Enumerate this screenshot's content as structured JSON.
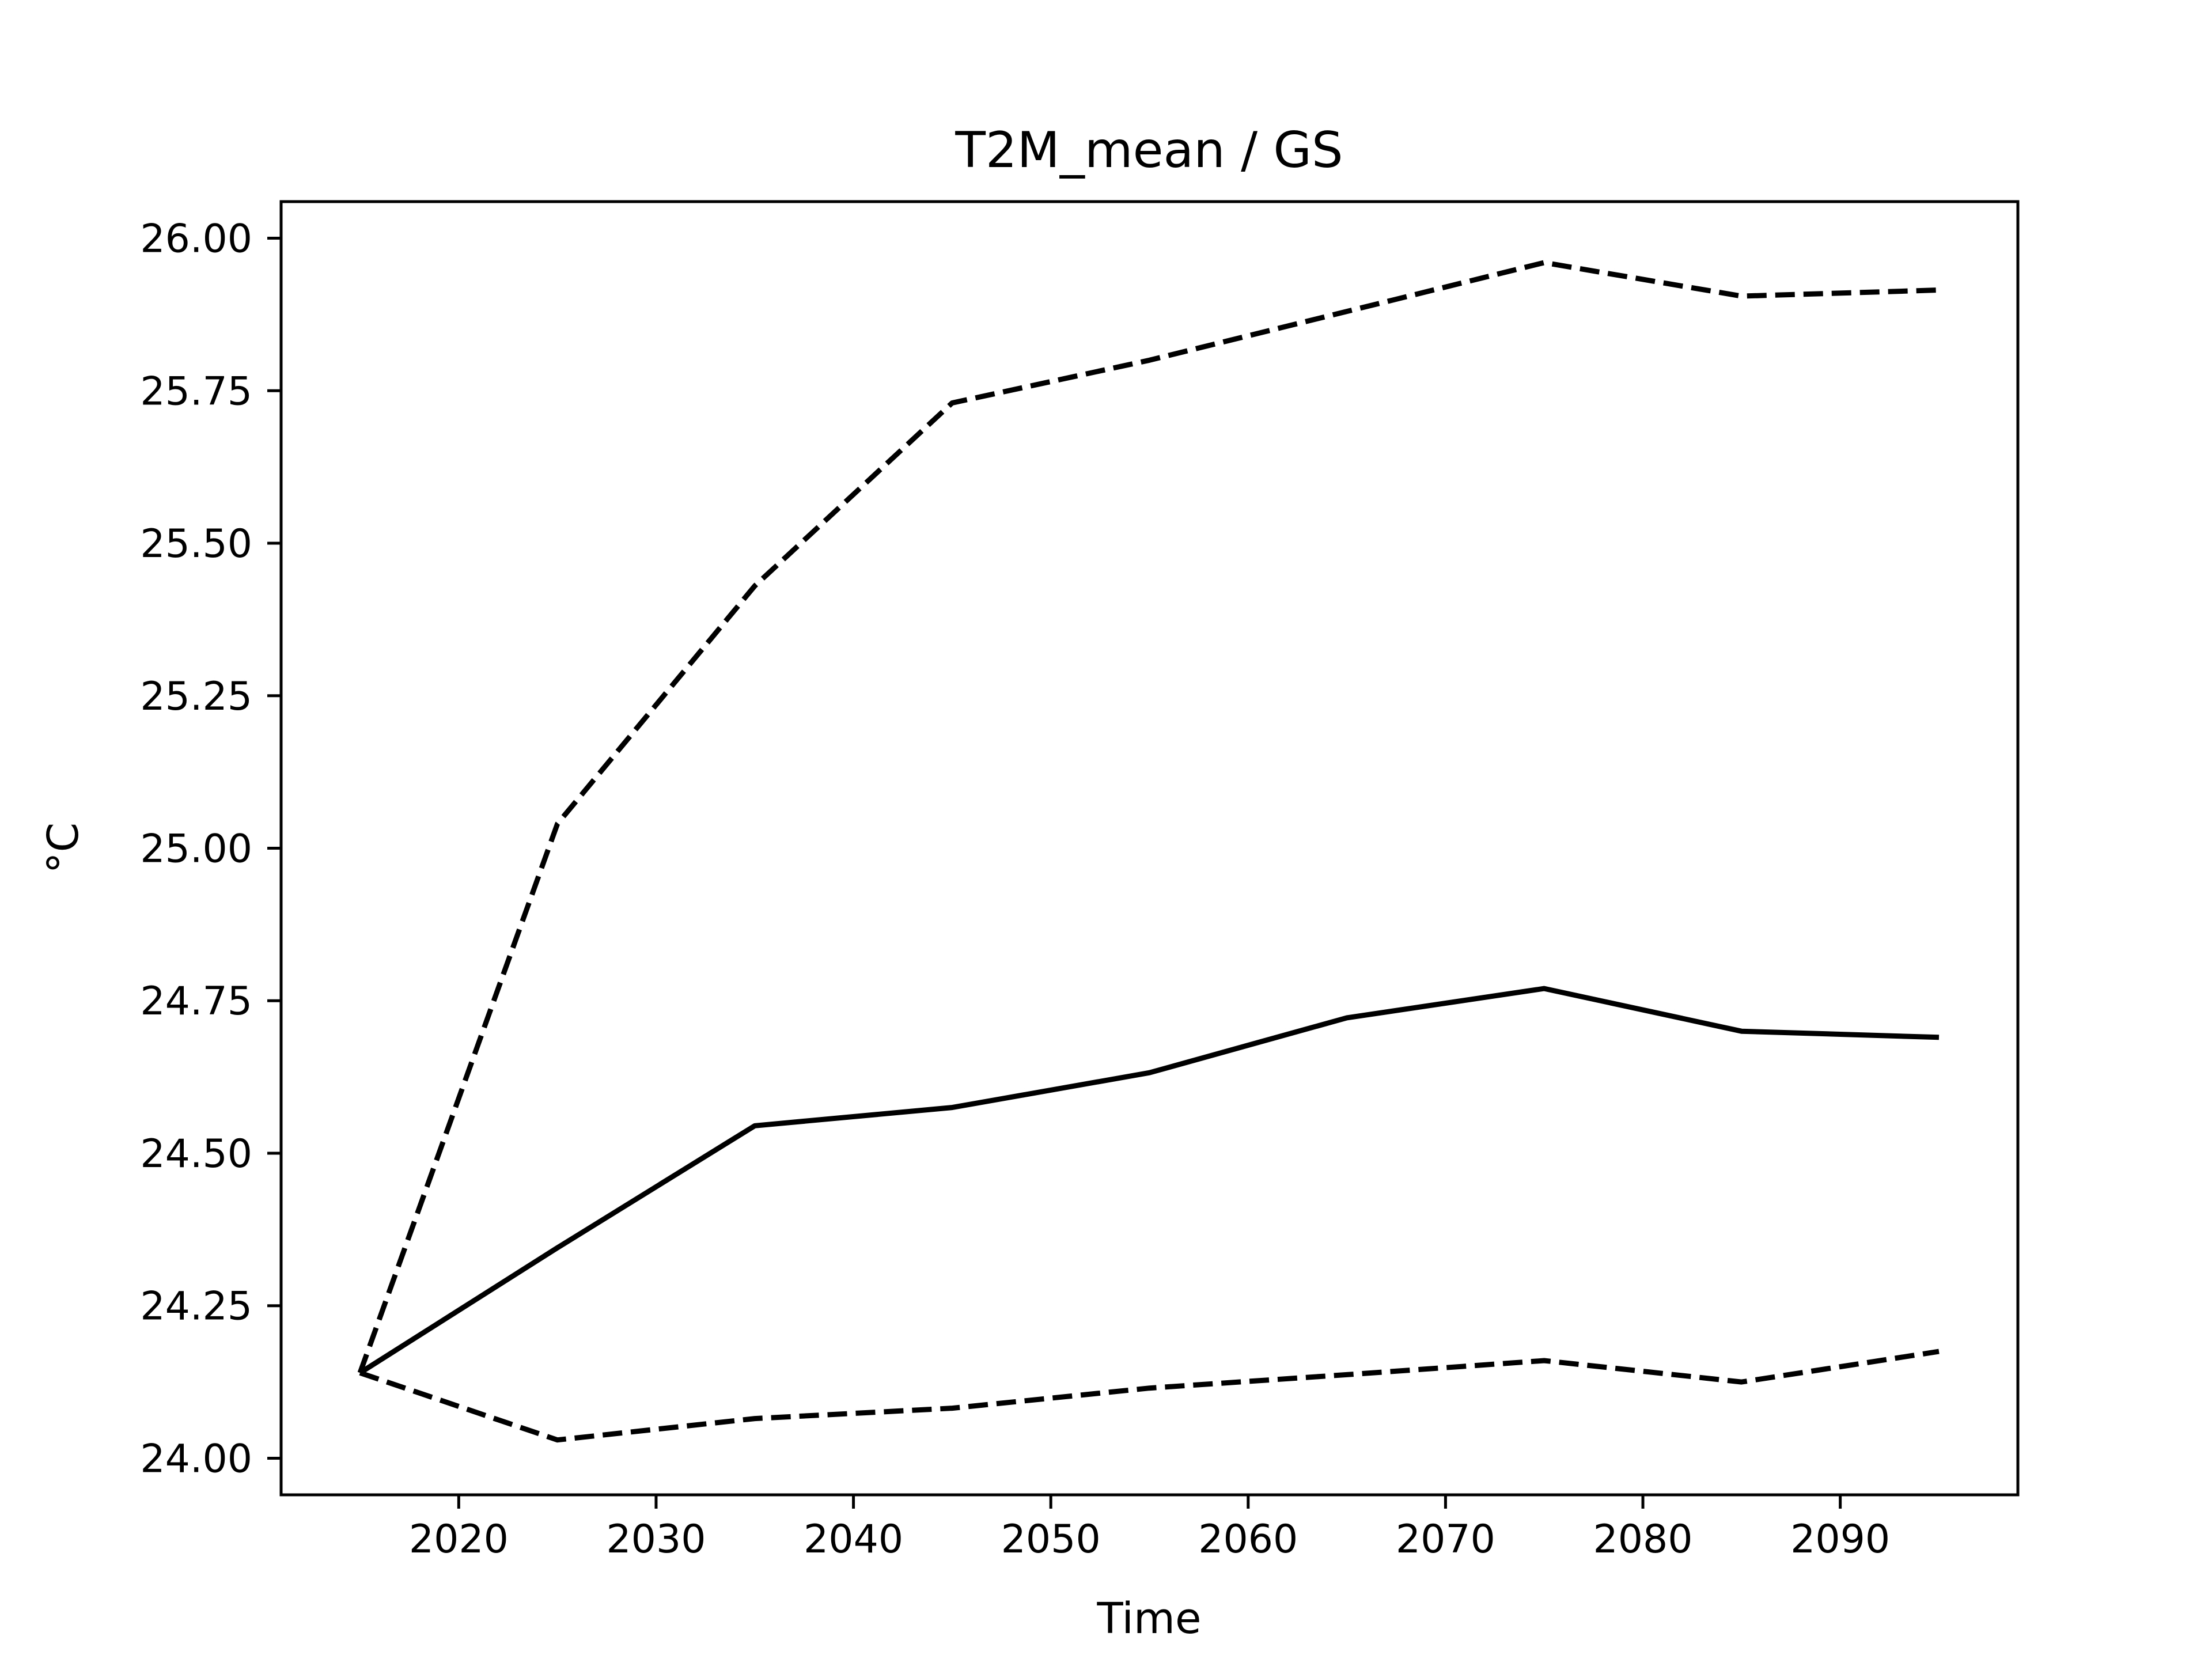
{
  "chart_data": {
    "type": "line",
    "title": "T2M_mean / GS",
    "xlabel": "Time",
    "ylabel": "°C",
    "xlim": [
      2011,
      2099
    ],
    "ylim": [
      23.94,
      26.06
    ],
    "xticks": [
      2020,
      2030,
      2040,
      2050,
      2060,
      2070,
      2080,
      2090
    ],
    "xtick_labels": [
      "2020",
      "2030",
      "2040",
      "2050",
      "2060",
      "2070",
      "2080",
      "2090"
    ],
    "yticks": [
      24.0,
      24.25,
      24.5,
      24.75,
      25.0,
      25.25,
      25.5,
      25.75,
      26.0
    ],
    "ytick_labels": [
      "24.00",
      "24.25",
      "24.50",
      "24.75",
      "25.00",
      "25.25",
      "25.50",
      "25.75",
      "26.00"
    ],
    "grid": false,
    "x": [
      2015,
      2025,
      2035,
      2045,
      2055,
      2065,
      2075,
      2085,
      2095
    ],
    "series": [
      {
        "style": "dashed",
        "color": "#000000",
        "values": [
          24.14,
          25.04,
          25.43,
          25.73,
          25.8,
          25.88,
          25.96,
          25.905,
          25.915
        ]
      },
      {
        "style": "solid",
        "color": "#000000",
        "values": [
          24.14,
          24.345,
          24.545,
          24.575,
          24.632,
          24.722,
          24.77,
          24.7,
          24.69
        ]
      },
      {
        "style": "dashed",
        "color": "#000000",
        "values": [
          24.14,
          24.03,
          24.065,
          24.082,
          24.115,
          24.137,
          24.16,
          24.125,
          24.175
        ]
      }
    ]
  }
}
